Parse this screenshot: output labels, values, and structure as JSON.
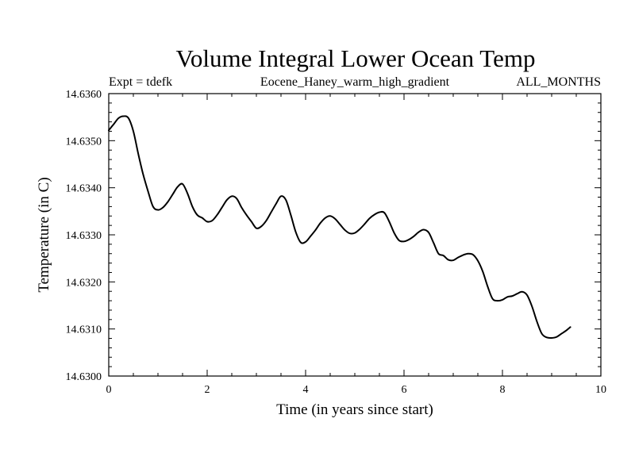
{
  "chart_data": {
    "type": "line",
    "title": "Volume Integral Lower Ocean Temp",
    "subtitle_left": "Expt = tdefk",
    "subtitle_center": "Eocene_Haney_warm_high_gradient",
    "subtitle_right": "ALL_MONTHS",
    "xlabel": "Time (in years since start)",
    "ylabel": "Temperature (in C)",
    "xlim": [
      0,
      10
    ],
    "ylim": [
      14.63,
      14.636
    ],
    "x_ticks": [
      0,
      2,
      4,
      6,
      8,
      10
    ],
    "x_tick_labels": [
      "0",
      "2",
      "4",
      "6",
      "8",
      "10"
    ],
    "y_ticks": [
      14.63,
      14.631,
      14.632,
      14.633,
      14.634,
      14.635,
      14.636
    ],
    "y_tick_labels": [
      "14.6300",
      "14.6310",
      "14.6320",
      "14.6330",
      "14.6340",
      "14.6350",
      "14.6360"
    ],
    "grid": false,
    "series": [
      {
        "x": [
          0,
          0.1,
          0.2,
          0.3,
          0.4,
          0.5,
          0.6,
          0.7,
          0.8,
          0.9,
          1.0,
          1.1,
          1.2,
          1.3,
          1.4,
          1.5,
          1.6,
          1.7,
          1.8,
          1.9,
          2.0,
          2.1,
          2.2,
          2.3,
          2.4,
          2.5,
          2.6,
          2.7,
          2.8,
          2.9,
          3.0,
          3.1,
          3.2,
          3.3,
          3.4,
          3.5,
          3.6,
          3.7,
          3.8,
          3.9,
          4.0,
          4.1,
          4.2,
          4.3,
          4.4,
          4.5,
          4.6,
          4.7,
          4.8,
          4.9,
          5.0,
          5.1,
          5.2,
          5.3,
          5.4,
          5.5,
          5.6,
          5.7,
          5.8,
          5.9,
          6.0,
          6.1,
          6.2,
          6.3,
          6.4,
          6.5,
          6.6,
          6.7,
          6.8,
          6.9,
          7.0,
          7.1,
          7.2,
          7.3,
          7.4,
          7.5,
          7.6,
          7.7,
          7.8,
          7.9,
          8.0,
          8.1,
          8.2,
          8.3,
          8.4,
          8.5,
          8.6,
          8.7,
          8.8,
          8.9,
          9.0,
          9.1,
          9.2,
          9.3,
          9.38
        ],
        "y": [
          14.63522,
          14.63535,
          14.63548,
          14.63552,
          14.63548,
          14.6352,
          14.63472,
          14.63428,
          14.63392,
          14.6336,
          14.63353,
          14.63358,
          14.6337,
          14.63386,
          14.63402,
          14.63408,
          14.63388,
          14.6336,
          14.63342,
          14.63336,
          14.63328,
          14.6333,
          14.63342,
          14.63358,
          14.63374,
          14.63382,
          14.63377,
          14.63358,
          14.63342,
          14.63328,
          14.63314,
          14.63318,
          14.6333,
          14.63348,
          14.63366,
          14.63382,
          14.63374,
          14.63342,
          14.63306,
          14.63284,
          14.63285,
          14.63297,
          14.6331,
          14.63325,
          14.63336,
          14.6334,
          14.63334,
          14.63322,
          14.6331,
          14.63303,
          14.63304,
          14.63312,
          14.63323,
          14.63335,
          14.63343,
          14.63348,
          14.63347,
          14.63328,
          14.63304,
          14.63288,
          14.63286,
          14.6329,
          14.63297,
          14.63306,
          14.63311,
          14.63305,
          14.63283,
          14.6326,
          14.63256,
          14.63247,
          14.63246,
          14.63252,
          14.63257,
          14.6326,
          14.63258,
          14.63245,
          14.63222,
          14.6319,
          14.63164,
          14.6316,
          14.63162,
          14.63168,
          14.6317,
          14.63175,
          14.63179,
          14.63172,
          14.63148,
          14.63116,
          14.6309,
          14.63082,
          14.63081,
          14.63083,
          14.6309,
          14.63097,
          14.63104
        ]
      }
    ]
  }
}
